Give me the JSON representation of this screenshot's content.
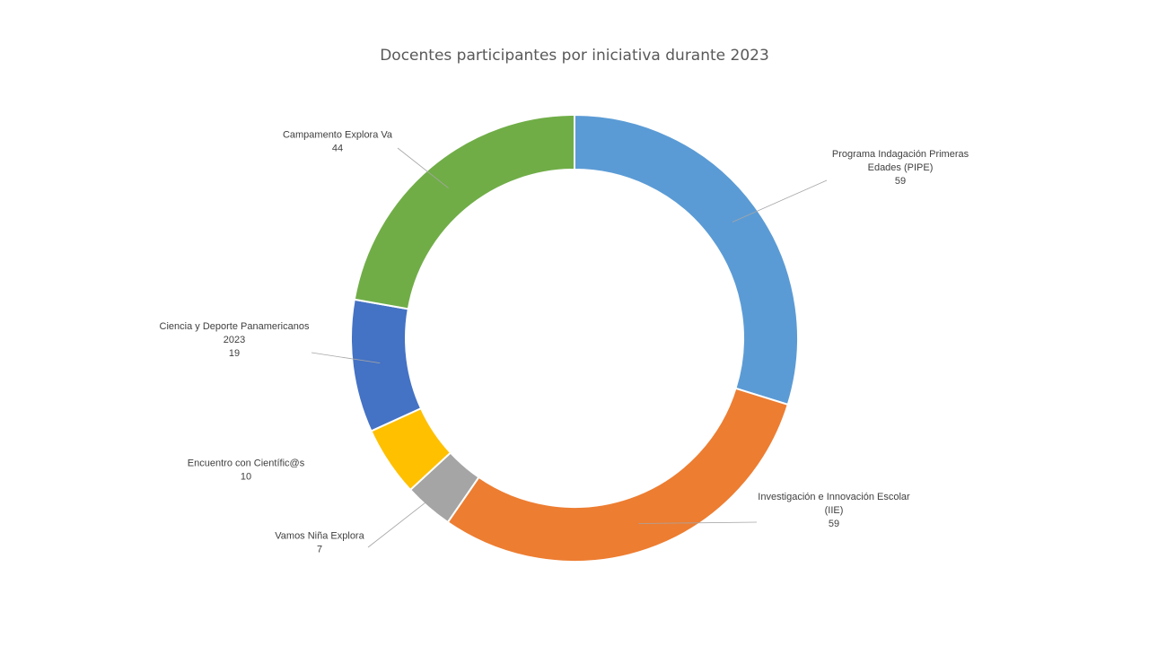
{
  "chart_data": {
    "type": "pie",
    "variant": "doughnut",
    "title": "Docentes participantes por iniciativa durante 2023",
    "slices": [
      {
        "name": "Programa Indagación Primeras Edades (PIPE)",
        "label_lines": [
          "Programa Indagación Primeras",
          "Edades (PIPE)"
        ],
        "value": 59,
        "color": "#5B9BD5"
      },
      {
        "name": "Investigación e Innovación Escolar (IIE)",
        "label_lines": [
          "Investigación e Innovación Escolar",
          "(IIE)"
        ],
        "value": 59,
        "color": "#ED7D31"
      },
      {
        "name": "Vamos Niña Explora",
        "label_lines": [
          "Vamos Niña Explora"
        ],
        "value": 7,
        "color": "#A5A5A5"
      },
      {
        "name": "Encuentro con Científic@s",
        "label_lines": [
          "Encuentro con Científic@s"
        ],
        "value": 10,
        "color": "#FFC000"
      },
      {
        "name": "Ciencia y Deporte Panamericanos 2023",
        "label_lines": [
          "Ciencia y Deporte Panamericanos",
          "2023"
        ],
        "value": 19,
        "color": "#4472C4"
      },
      {
        "name": "Campamento Explora Va",
        "label_lines": [
          "Campamento Explora Va"
        ],
        "value": 44,
        "color": "#70AD47"
      }
    ],
    "legend": "none",
    "data_labels": "outside, category name and value, with leader lines"
  }
}
